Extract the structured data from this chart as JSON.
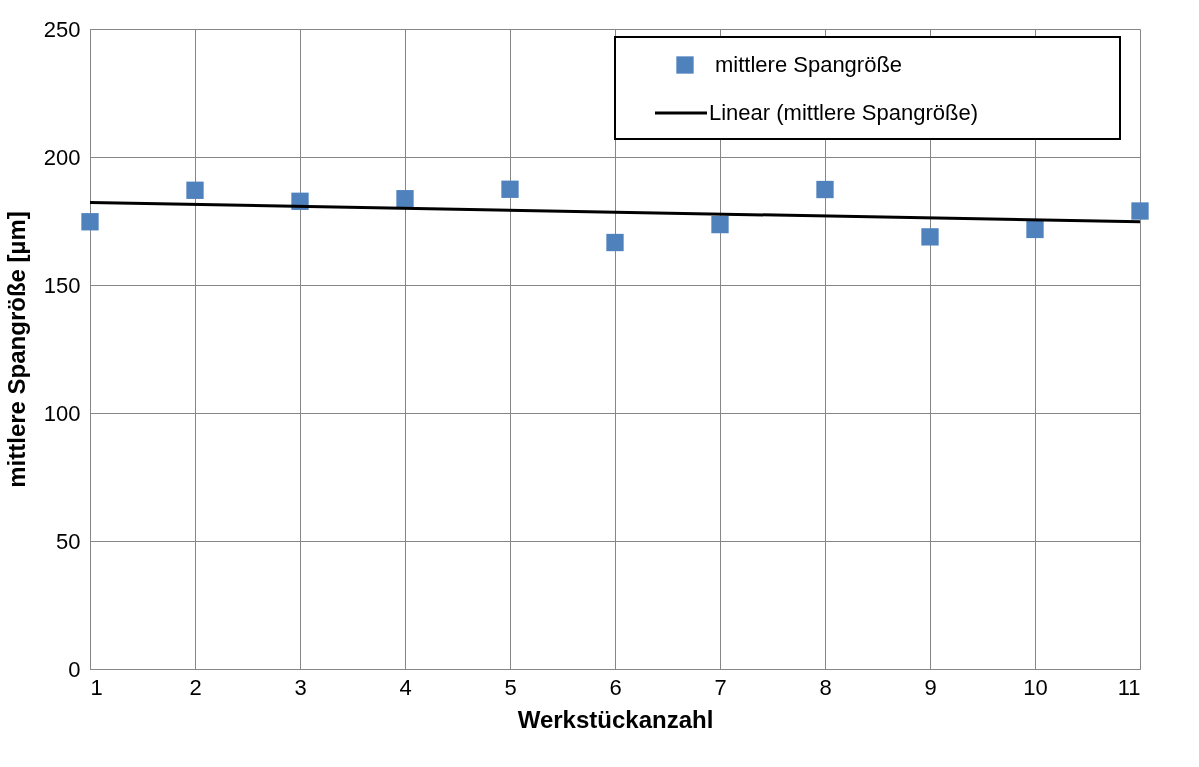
{
  "chart_data": {
    "type": "scatter",
    "xlabel": "Werkstückanzahl",
    "ylabel": "mittlere Spangröße [µm]",
    "x": [
      1,
      2,
      3,
      4,
      5,
      6,
      7,
      8,
      9,
      10,
      11
    ],
    "series": [
      {
        "name": "mittlere Spangröße",
        "color": "#4f81bd",
        "marker": "square",
        "values": [
          174.7,
          187,
          182.7,
          183.7,
          187.4,
          166.6,
          173.6,
          187.3,
          168.8,
          171.7,
          178.9
        ]
      },
      {
        "name": "Linear (mittlere Spangröße)",
        "type": "line",
        "color": "#000000",
        "line_style": "solid",
        "x": [
          1,
          11
        ],
        "values": [
          182.2,
          174.7
        ]
      }
    ],
    "xlim": [
      1,
      11
    ],
    "xticks": [
      1,
      2,
      3,
      4,
      5,
      6,
      7,
      8,
      9,
      10,
      11
    ],
    "ylim": [
      0,
      250
    ],
    "yticks": [
      0,
      50,
      100,
      150,
      200,
      250
    ],
    "grid": true,
    "legend": "top right"
  }
}
